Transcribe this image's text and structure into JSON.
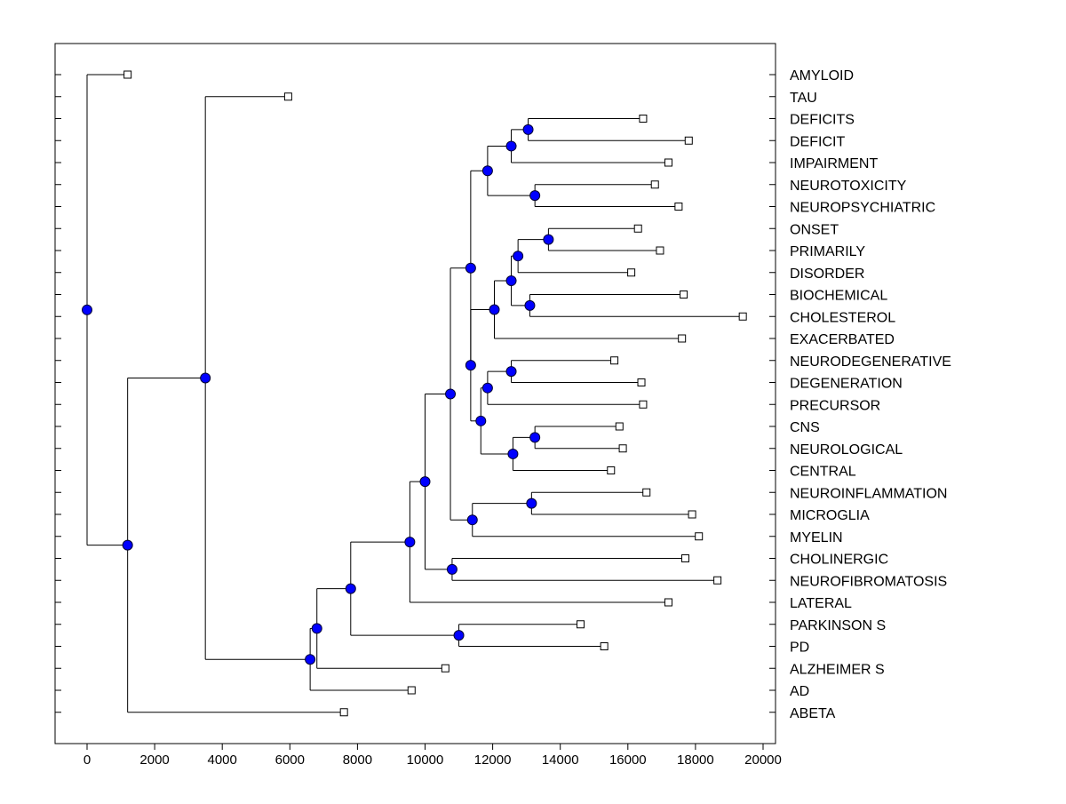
{
  "chart_data": {
    "type": "dendrogram",
    "orientation": "horizontal",
    "title": "",
    "xlabel": "",
    "ylabel": "",
    "xlim": [
      -1000,
      20500
    ],
    "x_ticks": [
      0,
      2000,
      4000,
      6000,
      8000,
      10000,
      12000,
      14000,
      16000,
      18000,
      20000
    ],
    "x_tick_labels": [
      "0",
      "2000",
      "4000",
      "6000",
      "8000",
      "10000",
      "12000",
      "14000",
      "16000",
      "18000",
      "20000"
    ],
    "grid": false,
    "colors": {
      "node": "#0000ff",
      "node_stroke": "#000033",
      "line": "#000000",
      "leaf_fill": "#ffffff"
    },
    "leaves": [
      {
        "id": "L_AMYLOID",
        "label": "AMYLOID",
        "x": 1200
      },
      {
        "id": "L_TAU",
        "label": "TAU",
        "x": 5950
      },
      {
        "id": "L_DEFICITS",
        "label": "DEFICITS",
        "x": 16450
      },
      {
        "id": "L_DEFICIT",
        "label": "DEFICIT",
        "x": 17800
      },
      {
        "id": "L_IMPAIRMENT",
        "label": "IMPAIRMENT",
        "x": 17200
      },
      {
        "id": "L_NEUROTOXICITY",
        "label": "NEUROTOXICITY",
        "x": 16800
      },
      {
        "id": "L_NEUROPSYCHIATRIC",
        "label": "NEUROPSYCHIATRIC",
        "x": 17500
      },
      {
        "id": "L_ONSET",
        "label": "ONSET",
        "x": 16300
      },
      {
        "id": "L_PRIMARILY",
        "label": "PRIMARILY",
        "x": 16950
      },
      {
        "id": "L_DISORDER",
        "label": "DISORDER",
        "x": 16100
      },
      {
        "id": "L_BIOCHEMICAL",
        "label": "BIOCHEMICAL",
        "x": 17650
      },
      {
        "id": "L_CHOLESTEROL",
        "label": "CHOLESTEROL",
        "x": 19400
      },
      {
        "id": "L_EXACERBATED",
        "label": "EXACERBATED",
        "x": 17600
      },
      {
        "id": "L_NEURODEGENERATIVE",
        "label": "NEURODEGENERATIVE",
        "x": 15600
      },
      {
        "id": "L_DEGENERATION",
        "label": "DEGENERATION",
        "x": 16400
      },
      {
        "id": "L_PRECURSOR",
        "label": "PRECURSOR",
        "x": 16450
      },
      {
        "id": "L_CNS",
        "label": "CNS",
        "x": 15750
      },
      {
        "id": "L_NEUROLOGICAL",
        "label": "NEUROLOGICAL",
        "x": 15850
      },
      {
        "id": "L_CENTRAL",
        "label": "CENTRAL",
        "x": 15500
      },
      {
        "id": "L_NEUROINFLAMMATION",
        "label": "NEUROINFLAMMATION",
        "x": 16550
      },
      {
        "id": "L_MICROGLIA",
        "label": "MICROGLIA",
        "x": 17900
      },
      {
        "id": "L_MYELIN",
        "label": "MYELIN",
        "x": 18100
      },
      {
        "id": "L_CHOLINERGIC",
        "label": "CHOLINERGIC",
        "x": 17700
      },
      {
        "id": "L_NEUROFIBROMATOSIS",
        "label": "NEUROFIBROMATOSIS",
        "x": 18650
      },
      {
        "id": "L_LATERAL",
        "label": "LATERAL",
        "x": 17200
      },
      {
        "id": "L_PARKINSON_S",
        "label": "PARKINSON S",
        "x": 14600
      },
      {
        "id": "L_PD",
        "label": "PD",
        "x": 15300
      },
      {
        "id": "L_ALZHEIMER_S",
        "label": "ALZHEIMER S",
        "x": 10600
      },
      {
        "id": "L_AD",
        "label": "AD",
        "x": 9600
      },
      {
        "id": "L_ABETA",
        "label": "ABETA",
        "x": 7600
      }
    ],
    "merges": [
      {
        "id": "N_DEF",
        "x": 13050,
        "children": [
          "L_DEFICITS",
          "L_DEFICIT"
        ]
      },
      {
        "id": "N_DEF_IMP",
        "x": 12550,
        "children": [
          "N_DEF",
          "L_IMPAIRMENT"
        ]
      },
      {
        "id": "N_NEURO_TOX",
        "x": 13250,
        "children": [
          "L_NEUROTOXICITY",
          "L_NEUROPSYCHIATRIC"
        ]
      },
      {
        "id": "N_COG",
        "x": 11850,
        "children": [
          "N_DEF_IMP",
          "N_NEURO_TOX"
        ]
      },
      {
        "id": "N_ONSET",
        "x": 13650,
        "children": [
          "L_ONSET",
          "L_PRIMARILY"
        ]
      },
      {
        "id": "N_ONSET_DIS",
        "x": 12750,
        "children": [
          "N_ONSET",
          "L_DISORDER"
        ]
      },
      {
        "id": "N_BIO",
        "x": 13100,
        "children": [
          "L_BIOCHEMICAL",
          "L_CHOLESTEROL"
        ]
      },
      {
        "id": "N_DIS_BIO",
        "x": 12550,
        "children": [
          "N_ONSET_DIS",
          "N_BIO"
        ]
      },
      {
        "id": "N_EXAC",
        "x": 12050,
        "children": [
          "N_DIS_BIO",
          "L_EXACERBATED"
        ]
      },
      {
        "id": "N_DEGEN",
        "x": 12550,
        "children": [
          "L_NEURODEGENERATIVE",
          "L_DEGENERATION"
        ]
      },
      {
        "id": "N_DEGEN_PREC",
        "x": 11850,
        "children": [
          "N_DEGEN",
          "L_PRECURSOR"
        ]
      },
      {
        "id": "N_CNS",
        "x": 13250,
        "children": [
          "L_CNS",
          "L_NEUROLOGICAL"
        ]
      },
      {
        "id": "N_CNS_CENT",
        "x": 12600,
        "children": [
          "N_CNS",
          "L_CENTRAL"
        ]
      },
      {
        "id": "N_STRUCT",
        "x": 11650,
        "children": [
          "N_DEGEN_PREC",
          "N_CNS_CENT"
        ]
      },
      {
        "id": "N_MID",
        "x": 11350,
        "children": [
          "N_EXAC",
          "N_STRUCT"
        ]
      },
      {
        "id": "N_UPPER",
        "x": 11350,
        "children": [
          "N_COG",
          "N_MID"
        ]
      },
      {
        "id": "N_INFLAM",
        "x": 13150,
        "children": [
          "L_NEUROINFLAMMATION",
          "L_MICROGLIA"
        ]
      },
      {
        "id": "N_INFLAM_MYE",
        "x": 11400,
        "children": [
          "N_INFLAM",
          "L_MYELIN"
        ]
      },
      {
        "id": "N_BIG",
        "x": 10750,
        "children": [
          "N_UPPER",
          "N_INFLAM_MYE"
        ]
      },
      {
        "id": "N_CHOL",
        "x": 10800,
        "children": [
          "L_CHOLINERGIC",
          "L_NEUROFIBROMATOSIS"
        ]
      },
      {
        "id": "N_BIG2",
        "x": 10000,
        "children": [
          "N_BIG",
          "N_CHOL"
        ]
      },
      {
        "id": "N_LAT",
        "x": 9550,
        "children": [
          "N_BIG2",
          "L_LATERAL"
        ]
      },
      {
        "id": "N_PARK",
        "x": 11000,
        "children": [
          "L_PARKINSON_S",
          "L_PD"
        ]
      },
      {
        "id": "N_LAT_PARK",
        "x": 7800,
        "children": [
          "N_LAT",
          "N_PARK"
        ]
      },
      {
        "id": "N_ALZ",
        "x": 6800,
        "children": [
          "N_LAT_PARK",
          "L_ALZHEIMER_S"
        ]
      },
      {
        "id": "N_AD",
        "x": 6600,
        "children": [
          "N_ALZ",
          "L_AD"
        ]
      },
      {
        "id": "N_TAU",
        "x": 3500,
        "children": [
          "L_TAU",
          "N_AD"
        ]
      },
      {
        "id": "N_ABETA",
        "x": 1200,
        "children": [
          "N_TAU",
          "L_ABETA"
        ]
      },
      {
        "id": "N_ROOT",
        "x": 0,
        "children": [
          "L_AMYLOID",
          "N_ABETA"
        ]
      }
    ]
  }
}
